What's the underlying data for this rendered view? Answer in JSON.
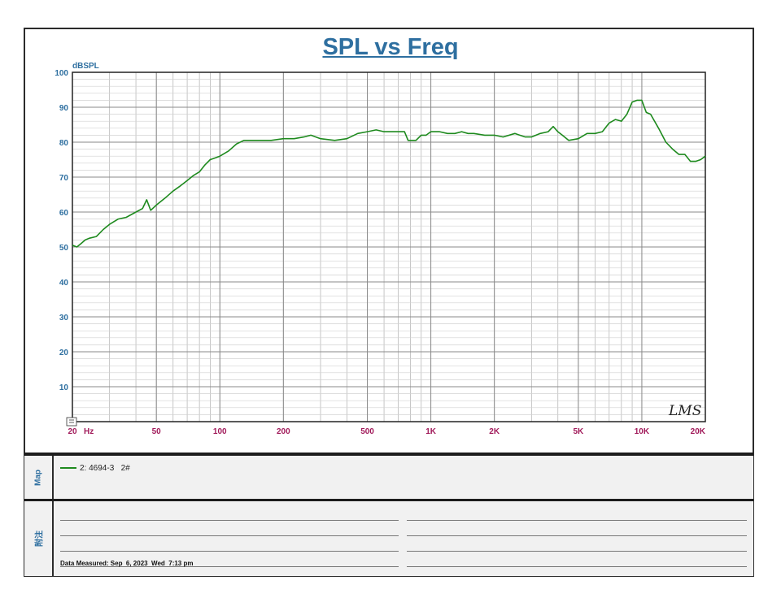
{
  "chart_data": {
    "type": "line",
    "title": "SPL vs Freq",
    "ylabel": "dBSPL",
    "x_scale": "log",
    "xlim": [
      20,
      20000
    ],
    "ylim": [
      0,
      100
    ],
    "x_ticks": [
      {
        "value": 20,
        "label": "20"
      },
      {
        "value": 50,
        "label": "50"
      },
      {
        "value": 100,
        "label": "100"
      },
      {
        "value": 200,
        "label": "200"
      },
      {
        "value": 500,
        "label": "500"
      },
      {
        "value": 1000,
        "label": "1K"
      },
      {
        "value": 2000,
        "label": "2K"
      },
      {
        "value": 5000,
        "label": "5K"
      },
      {
        "value": 10000,
        "label": "10K"
      },
      {
        "value": 20000,
        "label": "20K"
      }
    ],
    "x_unit": "Hz",
    "y_ticks": [
      {
        "value": 10,
        "label": "10"
      },
      {
        "value": 20,
        "label": "20"
      },
      {
        "value": 30,
        "label": "30"
      },
      {
        "value": 40,
        "label": "40"
      },
      {
        "value": 50,
        "label": "50"
      },
      {
        "value": 60,
        "label": "60"
      },
      {
        "value": 70,
        "label": "70"
      },
      {
        "value": 80,
        "label": "80"
      },
      {
        "value": 90,
        "label": "90"
      },
      {
        "value": 100,
        "label": "100"
      }
    ],
    "grid": true,
    "series": [
      {
        "name": "2: 4694-3   2#",
        "color": "#1e8a1e",
        "x": [
          20,
          21,
          22,
          23,
          24,
          26,
          28,
          30,
          33,
          36,
          40,
          43,
          45,
          47,
          48,
          50,
          55,
          60,
          65,
          70,
          75,
          80,
          85,
          90,
          95,
          100,
          110,
          120,
          130,
          140,
          150,
          175,
          200,
          225,
          250,
          270,
          300,
          350,
          400,
          450,
          500,
          550,
          600,
          650,
          700,
          750,
          780,
          850,
          900,
          950,
          1000,
          1100,
          1200,
          1300,
          1400,
          1500,
          1600,
          1800,
          2000,
          2200,
          2500,
          2800,
          3000,
          3300,
          3600,
          3800,
          4000,
          4200,
          4500,
          5000,
          5500,
          6000,
          6500,
          7000,
          7500,
          8000,
          8500,
          9000,
          9500,
          10000,
          10500,
          11000,
          12000,
          13000,
          14000,
          15000,
          16000,
          17000,
          18000,
          19000,
          20000
        ],
        "y": [
          50.5,
          50,
          51,
          52,
          52.5,
          53,
          55,
          56.5,
          58,
          58.5,
          60,
          61,
          63.5,
          60.5,
          61,
          62,
          64,
          66,
          67.5,
          69,
          70.5,
          71.5,
          73.5,
          75,
          75.5,
          76,
          77.5,
          79.5,
          80.5,
          80.5,
          80.5,
          80.5,
          81,
          81,
          81.5,
          82,
          81,
          80.5,
          81,
          82.5,
          83,
          83.5,
          83,
          83,
          83,
          83,
          80.5,
          80.5,
          82,
          82,
          83,
          83,
          82.5,
          82.5,
          83,
          82.5,
          82.5,
          82,
          82,
          81.5,
          82.5,
          81.5,
          81.5,
          82.5,
          83,
          84.5,
          83,
          82,
          80.5,
          81,
          82.5,
          82.5,
          83,
          85.5,
          86.5,
          86,
          88,
          91.5,
          92,
          92,
          88.5,
          88,
          84,
          80,
          78,
          76.5,
          76.5,
          74.5,
          74.5,
          75,
          76
        ]
      }
    ]
  },
  "logo_text": "LMS",
  "map_panel": {
    "label": "Map",
    "legend_entry": "2: 4694-3   2#"
  },
  "notes_panel": {
    "label": "附注",
    "measured": "Data Measured: Sep  6, 2023  Wed  7:13 pm"
  }
}
